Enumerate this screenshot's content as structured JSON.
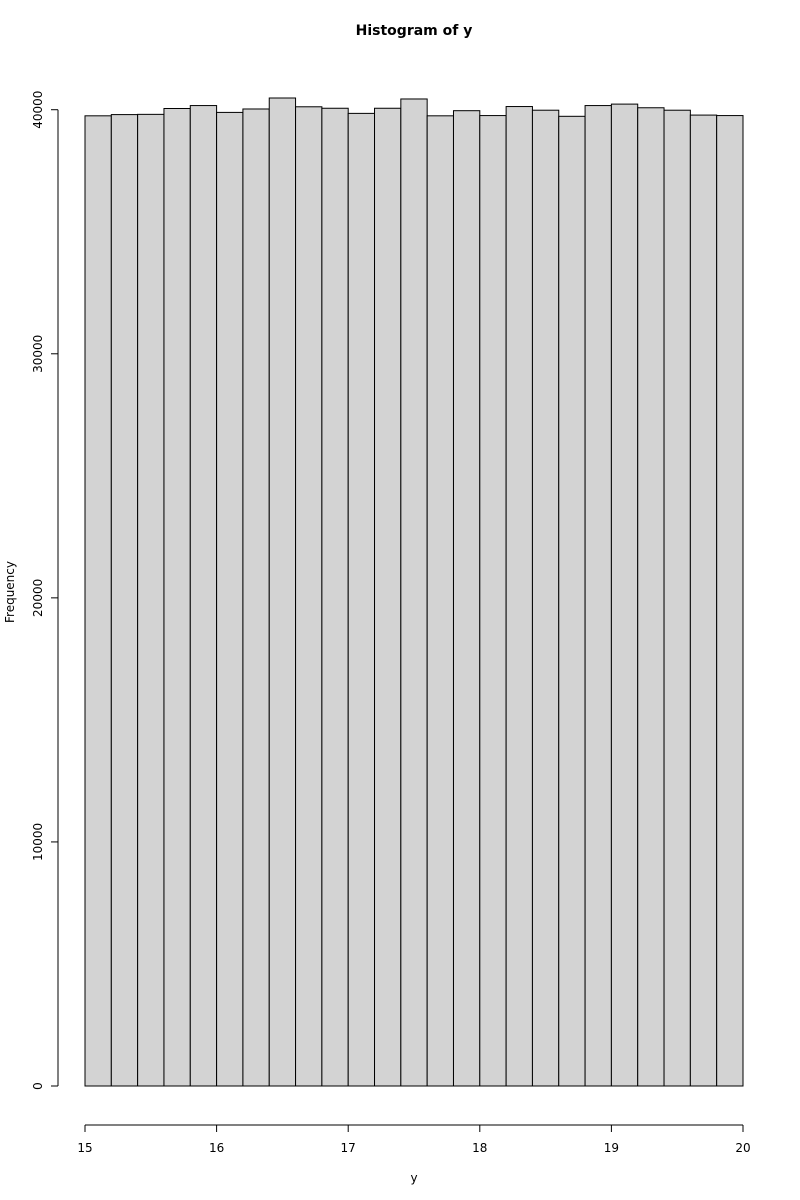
{
  "chart_data": {
    "type": "bar",
    "subtype": "histogram",
    "title": "Histogram of y",
    "xlabel": "y",
    "ylabel": "Frequency",
    "bin_edges": [
      15.0,
      15.2,
      15.4,
      15.6,
      15.8,
      16.0,
      16.2,
      16.4,
      16.6,
      16.8,
      17.0,
      17.2,
      17.4,
      17.6,
      17.8,
      18.0,
      18.2,
      18.4,
      18.6,
      18.8,
      19.0,
      19.2,
      19.4,
      19.6,
      19.8,
      20.0
    ],
    "values": [
      39750,
      39800,
      39810,
      40050,
      40170,
      39890,
      40030,
      40480,
      40120,
      40060,
      39850,
      40060,
      40440,
      39750,
      39960,
      39760,
      40130,
      39980,
      39730,
      40170,
      40230,
      40080,
      39980,
      39780,
      39760
    ],
    "xlim": [
      15,
      20
    ],
    "ylim": [
      0,
      40480
    ],
    "x_ticks": [
      15,
      16,
      17,
      18,
      19,
      20
    ],
    "y_ticks": [
      0,
      10000,
      20000,
      30000,
      40000
    ],
    "bar_fill": "#d3d3d3",
    "bar_stroke": "#000000",
    "grid": false,
    "legend": "none"
  }
}
